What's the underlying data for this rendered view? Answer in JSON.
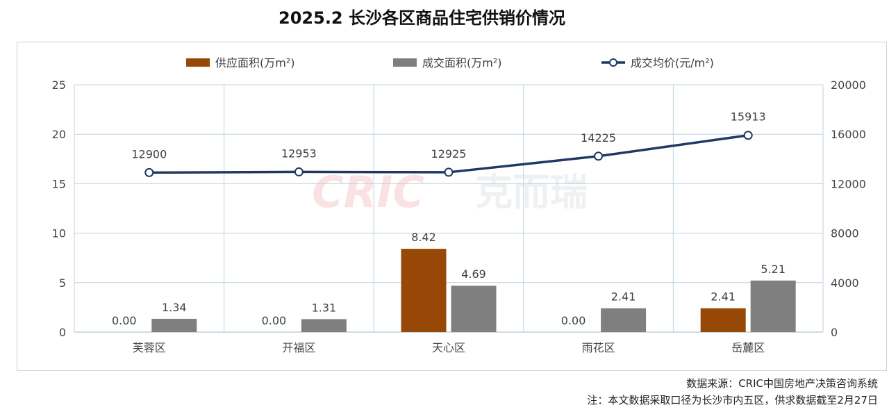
{
  "title": "2025.2 长沙各区商品住宅供销价情况",
  "footer": {
    "source": "数据来源：CRIC中国房地产决策咨询系统",
    "note": "注：本文数据采取口径为长沙市内五区，供求数据截至2月27日"
  },
  "watermark": {
    "latin": "CRIC",
    "chinese": "克而瑞"
  },
  "chart_data": {
    "type": "bar",
    "categories": [
      "芙蓉区",
      "开福区",
      "天心区",
      "雨花区",
      "岳麓区"
    ],
    "series": [
      {
        "name": "供应面积(万m²)",
        "type": "bar",
        "axis": "left",
        "color": "#974706",
        "values": [
          0.0,
          0.0,
          8.42,
          0.0,
          2.41
        ],
        "labels": [
          "0.00",
          "0.00",
          "8.42",
          "0.00",
          "2.41"
        ]
      },
      {
        "name": "成交面积(万m²)",
        "type": "bar",
        "axis": "left",
        "color": "#7f7f7f",
        "values": [
          1.34,
          1.31,
          4.69,
          2.41,
          5.21
        ],
        "labels": [
          "1.34",
          "1.31",
          "4.69",
          "2.41",
          "5.21"
        ]
      },
      {
        "name": "成交均价(元/m²)",
        "type": "line",
        "axis": "right",
        "color": "#203864",
        "values": [
          12900,
          12953,
          12925,
          14225,
          15913
        ],
        "labels": [
          "12900",
          "12953",
          "12925",
          "14225",
          "15913"
        ]
      }
    ],
    "y_left": {
      "range": [
        0,
        25
      ],
      "ticks": [
        "0",
        "5",
        "10",
        "15",
        "20",
        "25"
      ]
    },
    "y_right": {
      "range": [
        0,
        20000
      ],
      "ticks": [
        "0",
        "4000",
        "8000",
        "12000",
        "16000",
        "20000"
      ]
    },
    "grid": true,
    "legend_position": "top"
  }
}
